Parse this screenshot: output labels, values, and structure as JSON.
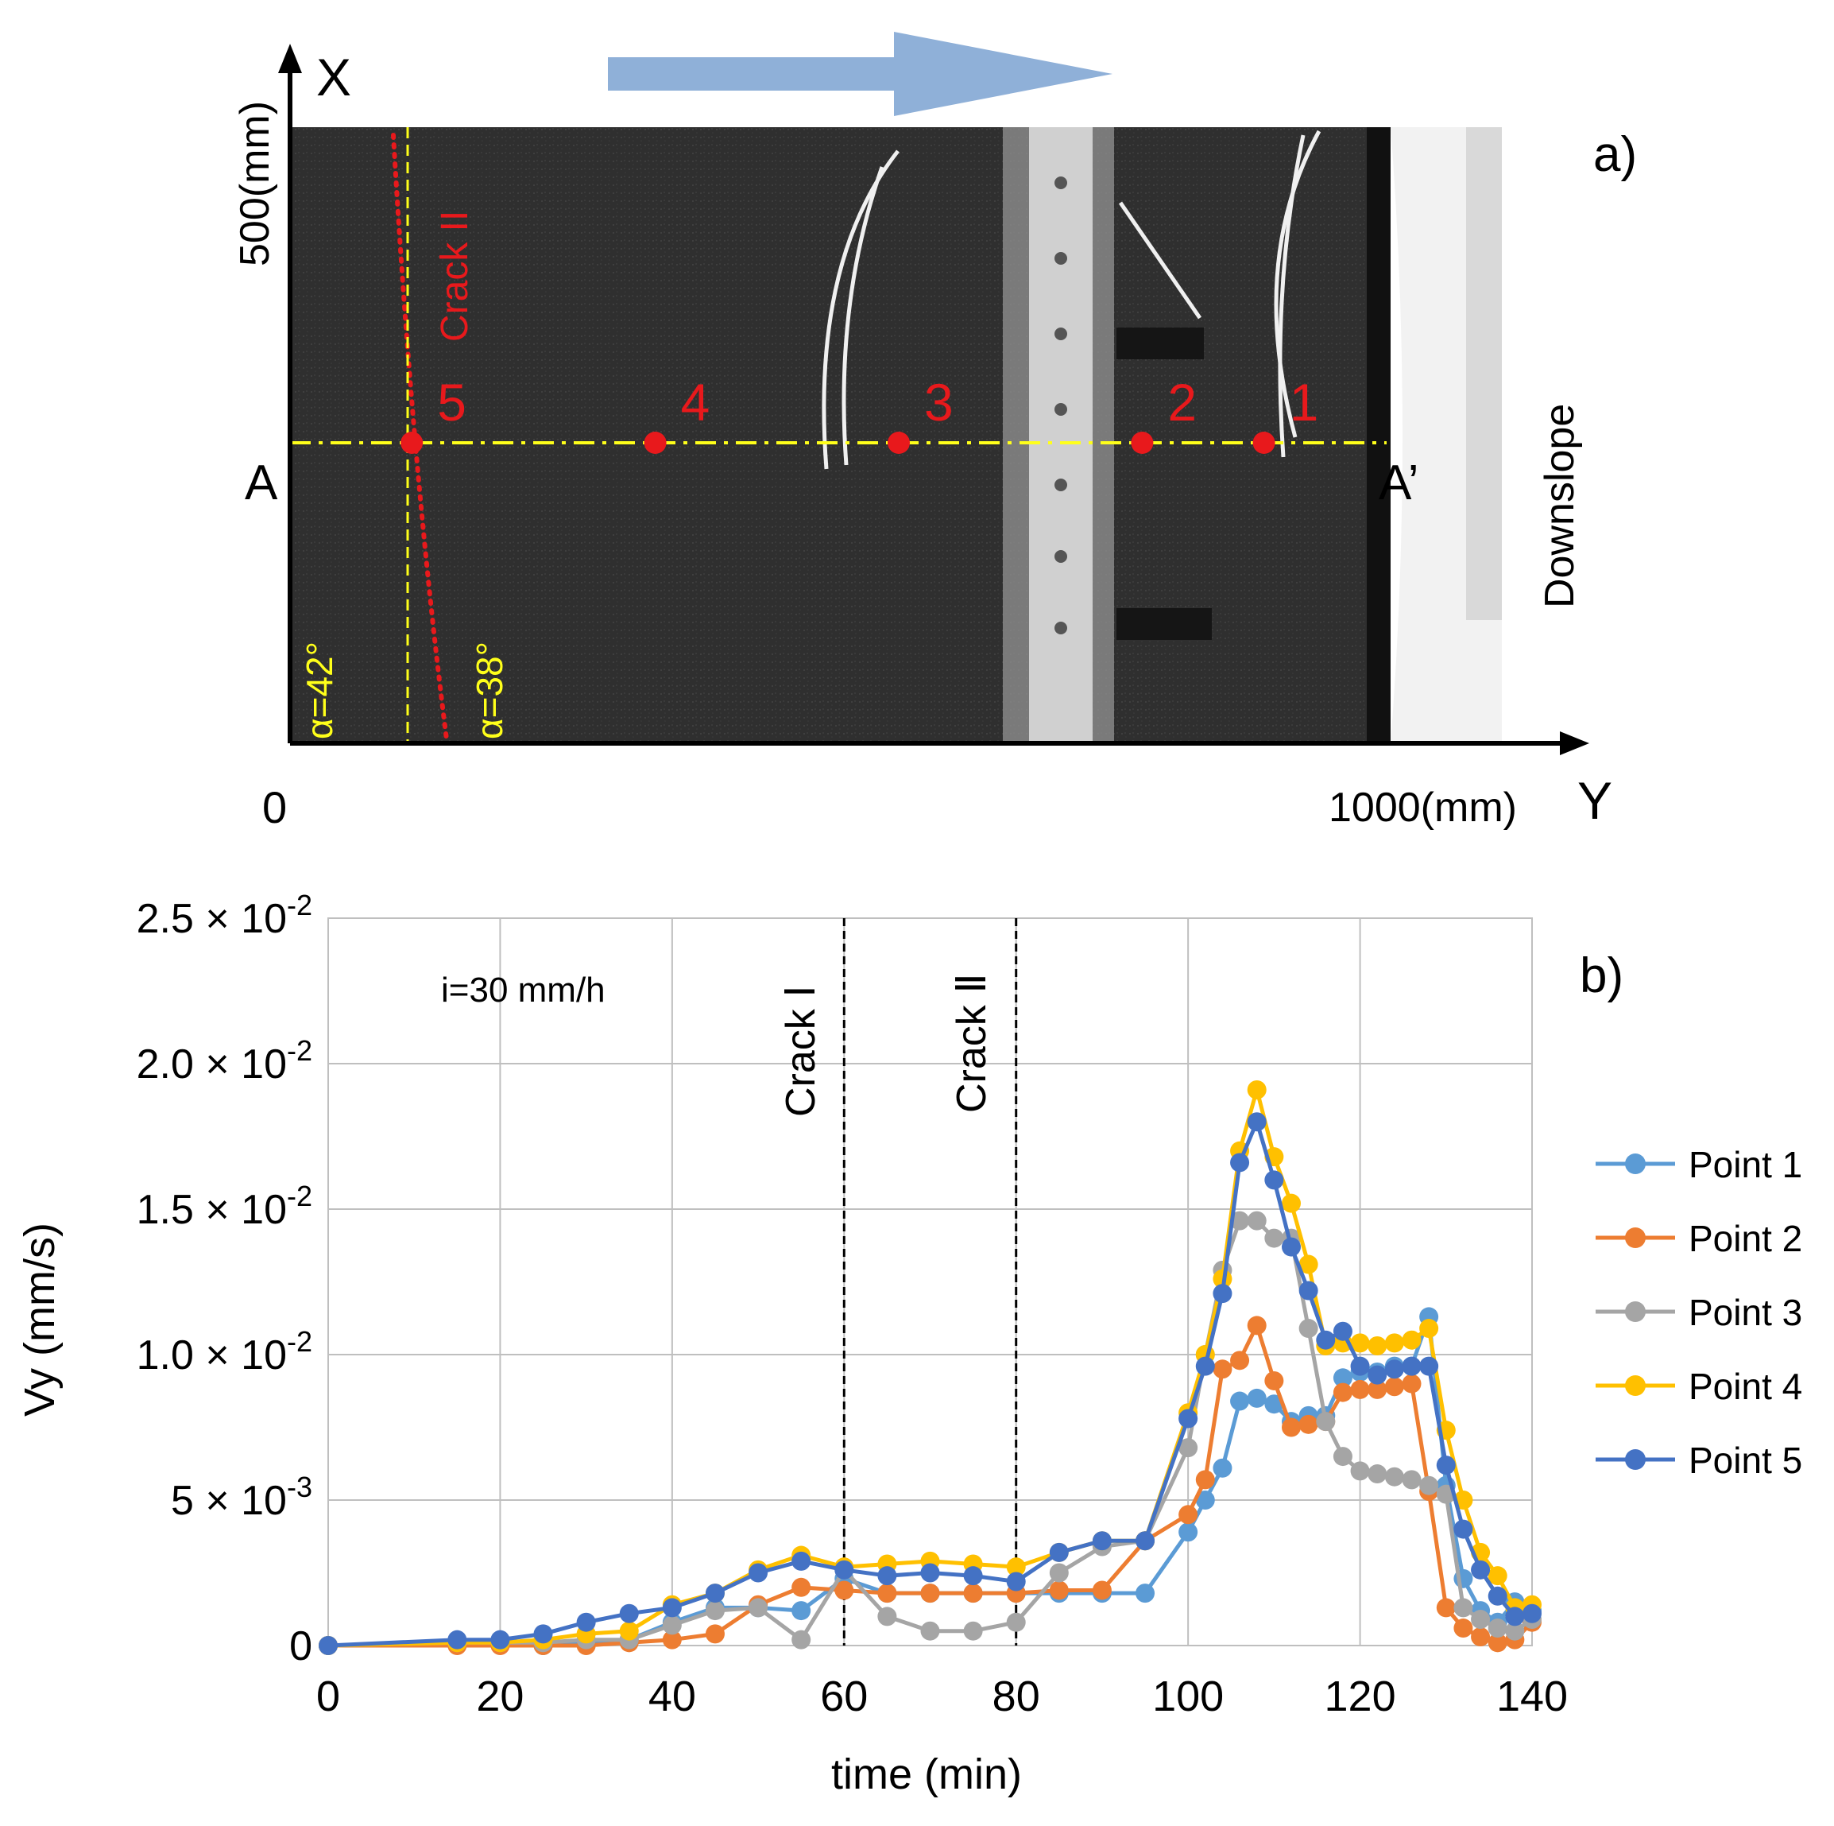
{
  "panel_a": {
    "label": "a)",
    "axis_x_letter": "X",
    "axis_y_letter": "Y",
    "origin_label": "0",
    "x_extent_label": "500(mm)",
    "y_extent_label": "1000(mm)",
    "section_start": "A",
    "section_end": "A’",
    "downslope_label": "Downslope",
    "crack_label": "Crack II",
    "angle_left": "α=42°",
    "angle_right": "α=38°",
    "points": [
      {
        "label": "5",
        "y_mm": 100
      },
      {
        "label": "4",
        "y_mm": 300
      },
      {
        "label": "3",
        "y_mm": 500
      },
      {
        "label": "2",
        "y_mm": 700
      },
      {
        "label": "1",
        "y_mm": 800
      }
    ],
    "colors": {
      "points": "#e8191c",
      "section_line": "#ffff1a",
      "arrow": "#8fb0d8",
      "soil": "#2e2e2e"
    }
  },
  "panel_b": {
    "label": "b)",
    "annotation_rain": "i=30 mm/h",
    "crack1_label": "Crack Ⅰ",
    "crack2_label": "Crack Ⅱ"
  },
  "chart_data": {
    "type": "line",
    "title": "",
    "xlabel": "time (min)",
    "ylabel": "Vy (mm/s)",
    "xlim": [
      0,
      140
    ],
    "ylim": [
      0,
      0.025
    ],
    "x_ticks": [
      0,
      20,
      40,
      60,
      80,
      100,
      120,
      140
    ],
    "y_ticks": [
      {
        "value": 0,
        "mantissa": "0",
        "exponent": ""
      },
      {
        "value": 0.005,
        "mantissa": "5 × 10",
        "exponent": "-3"
      },
      {
        "value": 0.01,
        "mantissa": "1.0 × 10",
        "exponent": "-2"
      },
      {
        "value": 0.015,
        "mantissa": "1.5 × 10",
        "exponent": "-2"
      },
      {
        "value": 0.02,
        "mantissa": "2.0 × 10",
        "exponent": "-2"
      },
      {
        "value": 0.025,
        "mantissa": "2.5 × 10",
        "exponent": "-2"
      }
    ],
    "grid": true,
    "legend_position": "right",
    "vertical_markers": [
      60,
      80
    ],
    "series": [
      {
        "name": "Point 1",
        "color": "#5b9bd5",
        "x": [
          0,
          15,
          20,
          25,
          30,
          35,
          40,
          45,
          50,
          55,
          60,
          65,
          70,
          75,
          80,
          85,
          90,
          95,
          100,
          102,
          104,
          106,
          108,
          110,
          112,
          114,
          116,
          118,
          120,
          122,
          124,
          126,
          128,
          130,
          132,
          134,
          136,
          138,
          140
        ],
        "y": [
          0,
          0.0001,
          0.0001,
          0,
          0.0001,
          0.0002,
          0.0008,
          0.0013,
          0.0013,
          0.0012,
          0.0023,
          0.0018,
          0.0018,
          0.0018,
          0.0018,
          0.0018,
          0.0018,
          0.0018,
          0.0039,
          0.005,
          0.0061,
          0.0084,
          0.0085,
          0.0083,
          0.0077,
          0.0079,
          0.0079,
          0.0092,
          0.0094,
          0.0094,
          0.0096,
          0.0096,
          0.0113,
          0.0055,
          0.0023,
          0.0012,
          0.0008,
          0.0015,
          0.0012
        ]
      },
      {
        "name": "Point 2",
        "color": "#ed7d31",
        "x": [
          0,
          15,
          20,
          25,
          30,
          35,
          40,
          45,
          50,
          55,
          60,
          65,
          70,
          75,
          80,
          85,
          90,
          95,
          100,
          102,
          104,
          106,
          108,
          110,
          112,
          114,
          116,
          118,
          120,
          122,
          124,
          126,
          128,
          130,
          132,
          134,
          136,
          138,
          140
        ],
        "y": [
          0,
          0,
          0,
          0,
          0,
          0.0001,
          0.0002,
          0.0004,
          0.0014,
          0.002,
          0.0019,
          0.0018,
          0.0018,
          0.0018,
          0.0018,
          0.0019,
          0.0019,
          0.0036,
          0.0045,
          0.0057,
          0.0095,
          0.0098,
          0.011,
          0.0091,
          0.0075,
          0.0076,
          0.0077,
          0.0087,
          0.0088,
          0.0088,
          0.0089,
          0.009,
          0.0053,
          0.0013,
          0.0006,
          0.0003,
          0.0001,
          0.0002,
          0.0008
        ]
      },
      {
        "name": "Point 3",
        "color": "#a5a5a5",
        "x": [
          0,
          15,
          20,
          25,
          30,
          35,
          40,
          45,
          50,
          55,
          60,
          65,
          70,
          75,
          80,
          85,
          90,
          95,
          100,
          102,
          104,
          106,
          108,
          110,
          112,
          114,
          116,
          118,
          120,
          122,
          124,
          126,
          128,
          130,
          132,
          134,
          136,
          138,
          140
        ],
        "y": [
          0,
          0.0001,
          0.0001,
          0.0001,
          0.0002,
          0.0002,
          0.0007,
          0.0012,
          0.0013,
          0.0002,
          0.0026,
          0.001,
          0.0005,
          0.0005,
          0.0008,
          0.0025,
          0.0034,
          0.0036,
          0.0068,
          0.01,
          0.0129,
          0.0146,
          0.0146,
          0.014,
          0.014,
          0.0109,
          0.0077,
          0.0065,
          0.006,
          0.0059,
          0.0058,
          0.0057,
          0.0055,
          0.0052,
          0.0013,
          0.0009,
          0.0006,
          0.0005,
          0.0009
        ]
      },
      {
        "name": "Point 4",
        "color": "#ffc000",
        "x": [
          0,
          15,
          20,
          25,
          30,
          35,
          40,
          45,
          50,
          55,
          60,
          65,
          70,
          75,
          80,
          85,
          90,
          95,
          100,
          102,
          104,
          106,
          108,
          110,
          112,
          114,
          116,
          118,
          120,
          122,
          124,
          126,
          128,
          130,
          132,
          134,
          136,
          138,
          140
        ],
        "y": [
          0,
          0.0001,
          0.0001,
          0.0002,
          0.0004,
          0.0005,
          0.0014,
          0.0018,
          0.0026,
          0.0031,
          0.0027,
          0.0028,
          0.0029,
          0.0028,
          0.0027,
          0.0032,
          0.0036,
          0.0036,
          0.008,
          0.01,
          0.0126,
          0.017,
          0.0191,
          0.0168,
          0.0152,
          0.0131,
          0.0103,
          0.0104,
          0.0104,
          0.0103,
          0.0104,
          0.0105,
          0.0109,
          0.0074,
          0.005,
          0.0032,
          0.0024,
          0.0013,
          0.0014
        ]
      },
      {
        "name": "Point 5",
        "color": "#4472c4",
        "x": [
          0,
          15,
          20,
          25,
          30,
          35,
          40,
          45,
          50,
          55,
          60,
          65,
          70,
          75,
          80,
          85,
          90,
          95,
          100,
          102,
          104,
          106,
          108,
          110,
          112,
          114,
          116,
          118,
          120,
          122,
          124,
          126,
          128,
          130,
          132,
          134,
          136,
          138,
          140
        ],
        "y": [
          0,
          0.0002,
          0.0002,
          0.0004,
          0.0008,
          0.0011,
          0.0013,
          0.0018,
          0.0025,
          0.0029,
          0.0026,
          0.0024,
          0.0025,
          0.0024,
          0.0022,
          0.0032,
          0.0036,
          0.0036,
          0.0078,
          0.0096,
          0.0121,
          0.0166,
          0.018,
          0.016,
          0.0137,
          0.0122,
          0.0105,
          0.0108,
          0.0096,
          0.0093,
          0.0095,
          0.0096,
          0.0096,
          0.0062,
          0.004,
          0.0026,
          0.0017,
          0.001,
          0.0011
        ]
      }
    ]
  }
}
